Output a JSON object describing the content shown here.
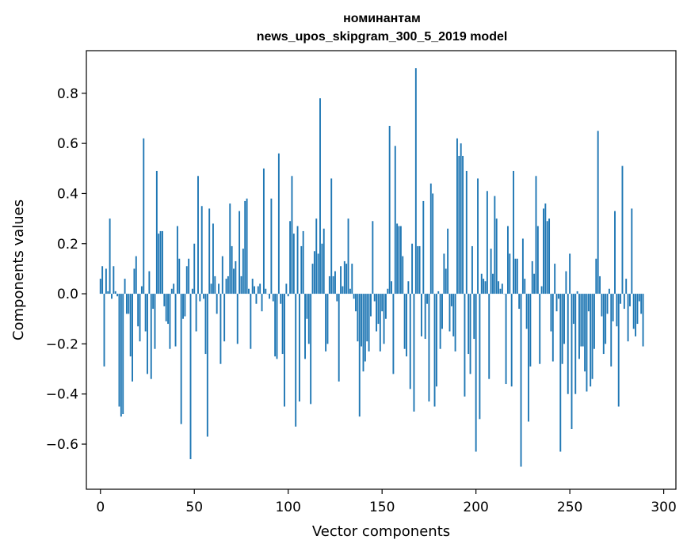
{
  "chart_data": {
    "type": "bar",
    "title_line1": "номинантам",
    "title_line2": "news_upos_skipgram_300_5_2019 model",
    "xlabel": "Vector components",
    "ylabel": "Components values",
    "xlim": [
      -7.5,
      306.5
    ],
    "ylim": [
      -0.78,
      0.97
    ],
    "xticks": [
      0,
      50,
      100,
      150,
      200,
      250,
      300
    ],
    "xtick_labels": [
      "0",
      "50",
      "100",
      "150",
      "200",
      "250",
      "300"
    ],
    "yticks": [
      -0.6,
      -0.4,
      -0.2,
      0.0,
      0.2,
      0.4,
      0.6,
      0.8
    ],
    "ytick_labels": [
      "−0.6",
      "−0.4",
      "−0.2",
      "0.0",
      "0.2",
      "0.4",
      "0.6",
      "0.8"
    ],
    "bar_color": "#1f77b4",
    "values": [
      0.06,
      0.11,
      -0.29,
      0.1,
      0.01,
      0.3,
      -0.02,
      0.11,
      0.01,
      -0.01,
      -0.45,
      -0.49,
      -0.48,
      0.06,
      -0.08,
      -0.08,
      -0.25,
      -0.35,
      0.1,
      0.15,
      -0.13,
      -0.19,
      0.03,
      0.62,
      -0.15,
      -0.32,
      0.09,
      -0.34,
      -0.06,
      -0.22,
      0.49,
      0.24,
      0.25,
      0.25,
      -0.05,
      -0.11,
      -0.12,
      -0.22,
      0.02,
      0.04,
      -0.21,
      0.27,
      0.14,
      -0.52,
      -0.1,
      -0.09,
      0.11,
      0.14,
      -0.66,
      0.02,
      0.2,
      -0.15,
      0.47,
      -0.03,
      0.35,
      -0.02,
      -0.24,
      -0.57,
      0.34,
      0.04,
      0.28,
      0.07,
      -0.08,
      0.04,
      -0.28,
      0.15,
      -0.19,
      0.06,
      0.07,
      0.36,
      0.19,
      0.1,
      0.13,
      -0.2,
      0.33,
      0.07,
      0.18,
      0.37,
      0.38,
      0.02,
      -0.22,
      0.06,
      0.03,
      -0.04,
      0.03,
      0.04,
      -0.07,
      0.5,
      0.02,
      0.0,
      -0.02,
      0.38,
      -0.03,
      -0.25,
      -0.26,
      0.56,
      -0.04,
      -0.24,
      -0.45,
      0.04,
      -0.01,
      0.29,
      0.47,
      0.24,
      -0.53,
      0.27,
      -0.43,
      0.19,
      0.25,
      -0.26,
      -0.1,
      -0.2,
      -0.44,
      0.12,
      0.17,
      0.3,
      0.16,
      0.78,
      0.2,
      0.26,
      -0.23,
      -0.2,
      0.07,
      0.46,
      0.07,
      0.09,
      -0.03,
      -0.35,
      0.11,
      0.03,
      0.13,
      0.12,
      0.3,
      0.02,
      0.12,
      -0.02,
      -0.07,
      -0.19,
      -0.49,
      -0.21,
      -0.31,
      -0.27,
      -0.19,
      -0.23,
      -0.09,
      0.29,
      -0.03,
      -0.15,
      -0.12,
      -0.23,
      -0.07,
      -0.2,
      -0.1,
      0.02,
      0.67,
      0.05,
      -0.32,
      0.59,
      0.28,
      0.27,
      0.27,
      0.15,
      -0.22,
      -0.25,
      0.05,
      -0.38,
      0.2,
      -0.47,
      0.9,
      0.19,
      0.19,
      -0.17,
      0.37,
      -0.18,
      -0.04,
      -0.43,
      0.44,
      0.4,
      -0.45,
      -0.37,
      0.01,
      -0.22,
      -0.14,
      0.16,
      0.1,
      0.26,
      -0.15,
      -0.05,
      -0.17,
      -0.23,
      0.62,
      0.55,
      0.6,
      0.55,
      -0.41,
      0.49,
      -0.24,
      -0.32,
      0.19,
      -0.18,
      -0.63,
      0.46,
      -0.5,
      0.08,
      0.06,
      0.05,
      0.41,
      -0.34,
      0.18,
      0.08,
      0.39,
      0.3,
      0.05,
      0.02,
      0.04,
      0.0,
      -0.36,
      0.27,
      0.16,
      -0.37,
      0.49,
      0.14,
      0.14,
      -0.06,
      -0.69,
      0.22,
      0.06,
      -0.14,
      -0.51,
      -0.29,
      0.13,
      0.08,
      0.47,
      0.27,
      -0.28,
      0.03,
      0.34,
      0.36,
      0.29,
      0.3,
      -0.15,
      -0.27,
      0.12,
      -0.07,
      -0.02,
      -0.63,
      -0.28,
      -0.2,
      0.09,
      -0.4,
      0.16,
      -0.54,
      -0.12,
      -0.4,
      0.01,
      -0.26,
      -0.21,
      -0.21,
      -0.31,
      -0.39,
      -0.07,
      -0.37,
      -0.34,
      -0.22,
      0.14,
      0.65,
      0.07,
      -0.09,
      -0.24,
      -0.2,
      -0.08,
      0.02,
      -0.29,
      -0.11,
      0.33,
      -0.13,
      -0.45,
      -0.04,
      0.51,
      -0.06,
      0.06,
      -0.19,
      -0.05,
      0.34,
      -0.14,
      -0.17,
      -0.12,
      -0.03,
      -0.08,
      -0.21
    ]
  }
}
